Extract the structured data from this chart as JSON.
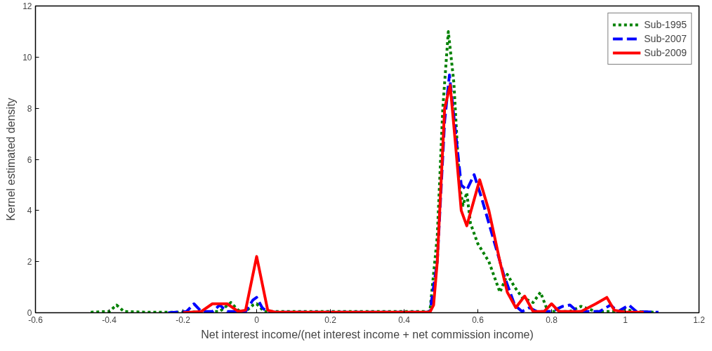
{
  "chart_data": {
    "type": "line",
    "xlabel": "Net interest income/(net interest income + net commission income)",
    "ylabel": "Kernel estimated density",
    "xlim": [
      -0.6,
      1.2
    ],
    "ylim": [
      0,
      12
    ],
    "xticks": [
      -0.6,
      -0.4,
      -0.2,
      0,
      0.2,
      0.4,
      0.6,
      0.8,
      1,
      1.2
    ],
    "yticks": [
      0,
      2,
      4,
      6,
      8,
      10,
      12
    ],
    "grid": false,
    "legend": "top right",
    "marker": "none",
    "series": [
      {
        "name": "Sub-1995",
        "color": "#008000",
        "line_style": "dotted",
        "x": [
          -0.45,
          -0.4,
          -0.38,
          -0.36,
          -0.3,
          -0.2,
          -0.1,
          -0.07,
          -0.05,
          -0.03,
          -0.01,
          0.0,
          0.02,
          0.47,
          0.49,
          0.505,
          0.52,
          0.535,
          0.55,
          0.56,
          0.57,
          0.58,
          0.6,
          0.63,
          0.66,
          0.68,
          0.7,
          0.72,
          0.75,
          0.77,
          0.79,
          0.85,
          0.88,
          0.92,
          0.98,
          1.0,
          1.02,
          1.08
        ],
        "values": [
          0.02,
          0.05,
          0.3,
          0.05,
          0.02,
          0.02,
          0.05,
          0.4,
          0.1,
          0.05,
          0.3,
          0.35,
          0.05,
          0.05,
          3,
          8,
          11,
          9,
          5,
          4.2,
          4.7,
          3.5,
          2.7,
          2,
          0.8,
          1.5,
          1.0,
          0.6,
          0.4,
          0.8,
          0.05,
          0.05,
          0.25,
          0.05,
          0.05,
          0.15,
          0.05,
          0.02
        ]
      },
      {
        "name": "Sub-2007",
        "color": "#0000ff",
        "line_style": "dashed",
        "x": [
          -0.24,
          -0.19,
          -0.17,
          -0.15,
          -0.12,
          -0.1,
          -0.08,
          -0.03,
          -0.01,
          0.0,
          0.015,
          0.03,
          0.47,
          0.49,
          0.51,
          0.523,
          0.54,
          0.555,
          0.57,
          0.59,
          0.61,
          0.64,
          0.67,
          0.7,
          0.72,
          0.74,
          0.76,
          0.8,
          0.83,
          0.85,
          0.87,
          0.93,
          0.96,
          0.98,
          1.01,
          1.03,
          1.09
        ],
        "values": [
          0,
          0.05,
          0.35,
          0.05,
          0.05,
          0.3,
          0.05,
          0.05,
          0.5,
          0.6,
          0.2,
          0.02,
          0.02,
          2,
          7.5,
          9.3,
          7,
          5,
          4.8,
          5.4,
          4.5,
          3,
          1.5,
          0.3,
          0.05,
          0.2,
          0.05,
          0.05,
          0.25,
          0.3,
          0.05,
          0.05,
          0.3,
          0.05,
          0.3,
          0.05,
          0.02
        ]
      },
      {
        "name": "Sub-2009",
        "color": "#ff0000",
        "line_style": "solid",
        "x": [
          -0.2,
          -0.15,
          -0.12,
          -0.08,
          -0.05,
          -0.03,
          -0.01,
          0.0,
          0.01,
          0.03,
          0.05,
          0.47,
          0.48,
          0.49,
          0.5,
          0.51,
          0.525,
          0.54,
          0.555,
          0.57,
          0.605,
          0.63,
          0.66,
          0.68,
          0.703,
          0.727,
          0.75,
          0.78,
          0.8,
          0.82,
          0.88,
          0.92,
          0.95,
          0.97,
          1.0,
          1.05
        ],
        "values": [
          0,
          0.05,
          0.35,
          0.35,
          0.05,
          0.1,
          1.5,
          2.2,
          1.5,
          0.1,
          0.02,
          0.02,
          0.3,
          2,
          5,
          8,
          8.9,
          6.5,
          4,
          3.4,
          5.2,
          4,
          2,
          0.8,
          0.2,
          0.65,
          0.05,
          0.05,
          0.35,
          0.05,
          0.05,
          0.35,
          0.6,
          0.1,
          0.02,
          0.02
        ]
      }
    ]
  }
}
